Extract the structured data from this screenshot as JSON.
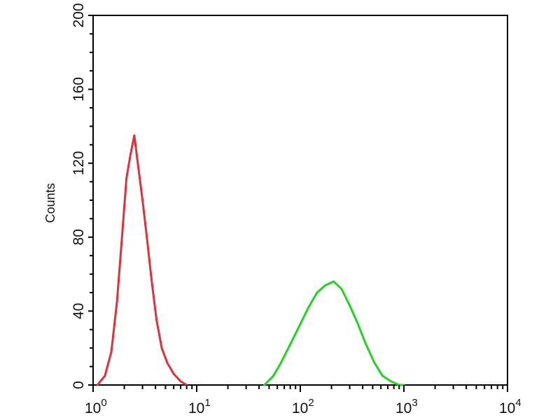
{
  "chart_data": {
    "type": "line",
    "subtype": "flow-cytometry-histogram",
    "xlabel": "",
    "ylabel": "Counts",
    "xscale": "log",
    "xlim": [
      1,
      10000
    ],
    "ylim": [
      0,
      200
    ],
    "x_ticks": [
      {
        "base": "10",
        "exp": "0",
        "value": 1
      },
      {
        "base": "10",
        "exp": "1",
        "value": 10
      },
      {
        "base": "10",
        "exp": "2",
        "value": 100
      },
      {
        "base": "10",
        "exp": "3",
        "value": 1000
      },
      {
        "base": "10",
        "exp": "4",
        "value": 10000
      }
    ],
    "y_ticks": [
      "0",
      "40",
      "80",
      "120",
      "160",
      "200"
    ],
    "grid": false,
    "series": [
      {
        "color": "#e0303a",
        "x": [
          1.1,
          1.3,
          1.5,
          1.7,
          1.9,
          2.1,
          2.3,
          2.5,
          2.7,
          3.0,
          3.3,
          3.7,
          4.1,
          4.6,
          5.2,
          6.0,
          7.0,
          8.0
        ],
        "y": [
          0,
          5,
          18,
          45,
          80,
          112,
          125,
          135,
          120,
          100,
          80,
          55,
          35,
          20,
          12,
          6,
          2,
          0
        ]
      },
      {
        "color": "#22d422",
        "x": [
          45,
          55,
          65,
          80,
          100,
          120,
          145,
          175,
          210,
          250,
          300,
          360,
          430,
          520,
          620,
          750,
          900,
          1000
        ],
        "y": [
          0,
          5,
          12,
          22,
          33,
          42,
          50,
          54,
          56,
          52,
          43,
          33,
          22,
          12,
          5,
          2,
          0,
          0
        ]
      }
    ]
  }
}
